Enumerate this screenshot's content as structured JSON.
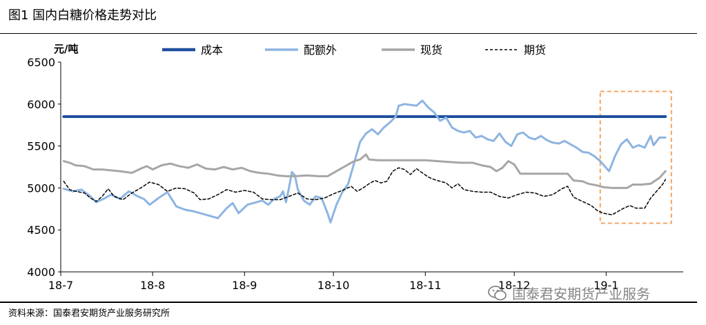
{
  "figure_title": "图1 国内白糖价格走势对比",
  "source_note": "资料来源：国泰君安期货产业服务研究所",
  "watermark_text": "国泰君安期货产业服务",
  "chart_data": {
    "type": "line",
    "yunit": "元/吨",
    "ylim": [
      4000,
      6500
    ],
    "yticks": [
      4000,
      4500,
      5000,
      5500,
      6000,
      6500
    ],
    "xticks": [
      {
        "label": "18-7",
        "x": 0
      },
      {
        "label": "18-8",
        "x": 31
      },
      {
        "label": "18-9",
        "x": 62
      },
      {
        "label": "18-10",
        "x": 92
      },
      {
        "label": "18-11",
        "x": 123
      },
      {
        "label": "18-12",
        "x": 153
      },
      {
        "label": "19-1",
        "x": 184
      }
    ],
    "xlim": [
      0,
      210
    ],
    "highlight_box": {
      "x": [
        182,
        206
      ],
      "y": [
        4580,
        6150
      ]
    },
    "series": [
      {
        "name": "成本",
        "color": "#1f4e9c",
        "dash": false,
        "width": 4,
        "points": [
          [
            1,
            5850
          ],
          [
            204,
            5850
          ]
        ]
      },
      {
        "name": "配额外",
        "color": "#8db4e2",
        "dash": false,
        "width": 3,
        "points": [
          [
            1,
            4990
          ],
          [
            4,
            4960
          ],
          [
            7,
            4980
          ],
          [
            10,
            4900
          ],
          [
            12,
            4830
          ],
          [
            15,
            4880
          ],
          [
            17,
            4920
          ],
          [
            20,
            4870
          ],
          [
            23,
            4960
          ],
          [
            26,
            4900
          ],
          [
            28,
            4870
          ],
          [
            30,
            4800
          ],
          [
            33,
            4880
          ],
          [
            36,
            4950
          ],
          [
            39,
            4780
          ],
          [
            42,
            4740
          ],
          [
            45,
            4720
          ],
          [
            48,
            4690
          ],
          [
            51,
            4660
          ],
          [
            53,
            4640
          ],
          [
            56,
            4760
          ],
          [
            58,
            4820
          ],
          [
            60,
            4700
          ],
          [
            63,
            4800
          ],
          [
            66,
            4830
          ],
          [
            68,
            4850
          ],
          [
            70,
            4800
          ],
          [
            72,
            4870
          ],
          [
            74,
            4900
          ],
          [
            75,
            4960
          ],
          [
            76,
            4830
          ],
          [
            77,
            5000
          ],
          [
            78,
            5190
          ],
          [
            79,
            5150
          ],
          [
            80,
            4980
          ],
          [
            82,
            4850
          ],
          [
            84,
            4800
          ],
          [
            86,
            4900
          ],
          [
            88,
            4880
          ],
          [
            90,
            4700
          ],
          [
            91,
            4590
          ],
          [
            93,
            4800
          ],
          [
            95,
            4950
          ],
          [
            97,
            5050
          ],
          [
            99,
            5300
          ],
          [
            101,
            5550
          ],
          [
            103,
            5650
          ],
          [
            105,
            5700
          ],
          [
            107,
            5640
          ],
          [
            109,
            5720
          ],
          [
            111,
            5780
          ],
          [
            113,
            5850
          ],
          [
            114,
            5980
          ],
          [
            116,
            6000
          ],
          [
            118,
            5990
          ],
          [
            120,
            5980
          ],
          [
            122,
            6040
          ],
          [
            124,
            5960
          ],
          [
            126,
            5900
          ],
          [
            128,
            5800
          ],
          [
            130,
            5840
          ],
          [
            132,
            5720
          ],
          [
            134,
            5680
          ],
          [
            136,
            5660
          ],
          [
            138,
            5680
          ],
          [
            140,
            5600
          ],
          [
            142,
            5620
          ],
          [
            144,
            5580
          ],
          [
            146,
            5560
          ],
          [
            148,
            5650
          ],
          [
            150,
            5550
          ],
          [
            152,
            5500
          ],
          [
            154,
            5640
          ],
          [
            156,
            5660
          ],
          [
            158,
            5600
          ],
          [
            160,
            5580
          ],
          [
            162,
            5620
          ],
          [
            164,
            5570
          ],
          [
            166,
            5540
          ],
          [
            168,
            5530
          ],
          [
            170,
            5560
          ],
          [
            172,
            5520
          ],
          [
            174,
            5480
          ],
          [
            176,
            5430
          ],
          [
            178,
            5420
          ],
          [
            180,
            5380
          ],
          [
            182,
            5320
          ],
          [
            185,
            5200
          ],
          [
            187,
            5380
          ],
          [
            189,
            5520
          ],
          [
            191,
            5580
          ],
          [
            193,
            5480
          ],
          [
            195,
            5510
          ],
          [
            197,
            5480
          ],
          [
            199,
            5620
          ],
          [
            200,
            5510
          ],
          [
            202,
            5600
          ],
          [
            204,
            5600
          ]
        ]
      },
      {
        "name": "现货",
        "color": "#a6a6a6",
        "dash": false,
        "width": 3,
        "points": [
          [
            1,
            5320
          ],
          [
            3,
            5300
          ],
          [
            5,
            5270
          ],
          [
            8,
            5260
          ],
          [
            11,
            5220
          ],
          [
            14,
            5220
          ],
          [
            17,
            5210
          ],
          [
            20,
            5200
          ],
          [
            24,
            5180
          ],
          [
            27,
            5230
          ],
          [
            29,
            5260
          ],
          [
            31,
            5220
          ],
          [
            34,
            5270
          ],
          [
            37,
            5290
          ],
          [
            40,
            5260
          ],
          [
            43,
            5240
          ],
          [
            46,
            5280
          ],
          [
            49,
            5230
          ],
          [
            52,
            5220
          ],
          [
            55,
            5250
          ],
          [
            58,
            5220
          ],
          [
            61,
            5240
          ],
          [
            64,
            5200
          ],
          [
            67,
            5180
          ],
          [
            70,
            5170
          ],
          [
            73,
            5150
          ],
          [
            76,
            5140
          ],
          [
            79,
            5140
          ],
          [
            83,
            5150
          ],
          [
            87,
            5140
          ],
          [
            90,
            5140
          ],
          [
            93,
            5200
          ],
          [
            96,
            5260
          ],
          [
            99,
            5320
          ],
          [
            101,
            5340
          ],
          [
            103,
            5400
          ],
          [
            104,
            5340
          ],
          [
            107,
            5330
          ],
          [
            111,
            5330
          ],
          [
            115,
            5330
          ],
          [
            119,
            5330
          ],
          [
            123,
            5330
          ],
          [
            127,
            5320
          ],
          [
            131,
            5310
          ],
          [
            135,
            5300
          ],
          [
            139,
            5300
          ],
          [
            142,
            5270
          ],
          [
            145,
            5250
          ],
          [
            147,
            5200
          ],
          [
            149,
            5240
          ],
          [
            151,
            5320
          ],
          [
            153,
            5280
          ],
          [
            155,
            5170
          ],
          [
            159,
            5170
          ],
          [
            163,
            5170
          ],
          [
            167,
            5170
          ],
          [
            171,
            5170
          ],
          [
            173,
            5090
          ],
          [
            176,
            5080
          ],
          [
            178,
            5050
          ],
          [
            181,
            5030
          ],
          [
            183,
            5010
          ],
          [
            186,
            5000
          ],
          [
            189,
            5000
          ],
          [
            191,
            5000
          ],
          [
            193,
            5040
          ],
          [
            196,
            5040
          ],
          [
            199,
            5050
          ],
          [
            202,
            5120
          ],
          [
            204,
            5200
          ]
        ]
      },
      {
        "name": "期货",
        "color": "#000000",
        "dash": true,
        "width": 1.5,
        "points": [
          [
            1,
            5080
          ],
          [
            3,
            4980
          ],
          [
            5,
            4960
          ],
          [
            8,
            4940
          ],
          [
            10,
            4880
          ],
          [
            12,
            4840
          ],
          [
            14,
            4900
          ],
          [
            16,
            4990
          ],
          [
            18,
            4900
          ],
          [
            21,
            4860
          ],
          [
            24,
            4940
          ],
          [
            27,
            5000
          ],
          [
            30,
            5070
          ],
          [
            33,
            5040
          ],
          [
            36,
            4960
          ],
          [
            39,
            5000
          ],
          [
            42,
            4990
          ],
          [
            45,
            4940
          ],
          [
            47,
            4860
          ],
          [
            50,
            4870
          ],
          [
            53,
            4920
          ],
          [
            56,
            4980
          ],
          [
            59,
            4950
          ],
          [
            62,
            4970
          ],
          [
            65,
            4950
          ],
          [
            68,
            4870
          ],
          [
            71,
            4860
          ],
          [
            74,
            4860
          ],
          [
            77,
            4900
          ],
          [
            80,
            4940
          ],
          [
            83,
            4870
          ],
          [
            86,
            4860
          ],
          [
            89,
            4880
          ],
          [
            92,
            4930
          ],
          [
            95,
            4970
          ],
          [
            98,
            5020
          ],
          [
            100,
            4960
          ],
          [
            102,
            5000
          ],
          [
            104,
            5050
          ],
          [
            106,
            5090
          ],
          [
            108,
            5060
          ],
          [
            110,
            5080
          ],
          [
            112,
            5200
          ],
          [
            114,
            5240
          ],
          [
            116,
            5220
          ],
          [
            118,
            5160
          ],
          [
            120,
            5230
          ],
          [
            122,
            5180
          ],
          [
            124,
            5130
          ],
          [
            126,
            5100
          ],
          [
            128,
            5080
          ],
          [
            130,
            5060
          ],
          [
            132,
            5000
          ],
          [
            134,
            5050
          ],
          [
            136,
            4980
          ],
          [
            139,
            4960
          ],
          [
            142,
            4950
          ],
          [
            145,
            4950
          ],
          [
            148,
            4900
          ],
          [
            151,
            4880
          ],
          [
            154,
            4920
          ],
          [
            157,
            4950
          ],
          [
            160,
            4940
          ],
          [
            163,
            4900
          ],
          [
            166,
            4920
          ],
          [
            169,
            4990
          ],
          [
            171,
            5020
          ],
          [
            173,
            4890
          ],
          [
            176,
            4840
          ],
          [
            179,
            4790
          ],
          [
            181,
            4730
          ],
          [
            183,
            4700
          ],
          [
            186,
            4680
          ],
          [
            188,
            4720
          ],
          [
            190,
            4760
          ],
          [
            192,
            4790
          ],
          [
            194,
            4760
          ],
          [
            197,
            4760
          ],
          [
            199,
            4880
          ],
          [
            201,
            4960
          ],
          [
            203,
            5040
          ],
          [
            204,
            5100
          ]
        ]
      }
    ]
  }
}
